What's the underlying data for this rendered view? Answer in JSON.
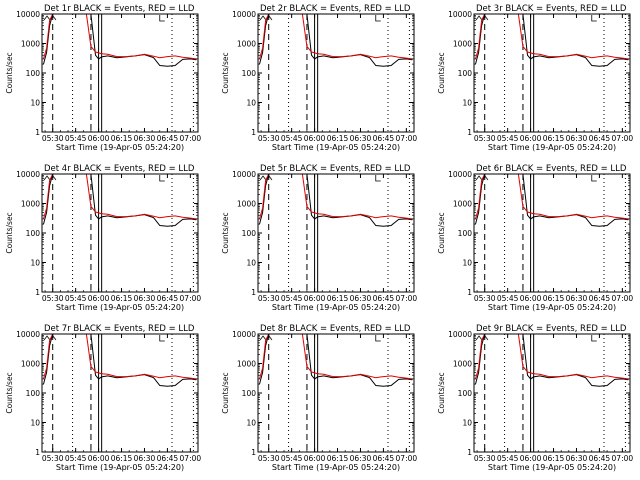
{
  "figure": {
    "common": {
      "xlabel": "Start Time (19-Apr-05 05:24:20)",
      "ylabel": "Counts/sec",
      "x_ticks": [
        "05:30",
        "05:45",
        "06:00",
        "06:15",
        "06:30",
        "06:45",
        "07:00"
      ],
      "y_ticks": [
        "1",
        "10",
        "100",
        "1000",
        "10000"
      ],
      "y_scale": "log",
      "colors": {
        "events": "#000000",
        "lld": "#e00000"
      }
    }
  },
  "chart_data": [
    {
      "type": "line",
      "title": "Det 1r BLACK = Events, RED = LLD",
      "x": [
        "05:24",
        "05:26",
        "05:28",
        "05:30",
        "05:33",
        "05:36",
        "05:40",
        "05:43",
        "05:46",
        "05:49",
        "05:52",
        "05:55",
        "05:58",
        "06:00",
        "06:02",
        "06:06",
        "06:12",
        "06:18",
        "06:24",
        "06:30",
        "06:36",
        "06:40",
        "06:45",
        "06:50",
        "06:55",
        "07:00",
        "07:04"
      ],
      "series": [
        {
          "name": "Events",
          "values": [
            200,
            500,
            4000,
            10000,
            10000,
            10000,
            10000,
            10000,
            10000,
            10000,
            10000,
            10000,
            400,
            300,
            350,
            380,
            330,
            350,
            380,
            420,
            330,
            180,
            170,
            180,
            290,
            300,
            280
          ]
        },
        {
          "name": "LLD",
          "values": [
            300,
            700,
            6000,
            10000,
            10000,
            10000,
            10000,
            10000,
            10000,
            10000,
            10000,
            800,
            520,
            480,
            450,
            430,
            360,
            360,
            380,
            430,
            370,
            330,
            360,
            380,
            340,
            320,
            300
          ]
        }
      ],
      "ylim": [
        1,
        10000
      ]
    },
    {
      "type": "line",
      "title": "Det 2r BLACK = Events, RED = LLD",
      "x": [
        "05:24",
        "05:26",
        "05:28",
        "05:30",
        "05:33",
        "05:36",
        "05:40",
        "05:43",
        "05:46",
        "05:49",
        "05:52",
        "05:55",
        "05:58",
        "06:00",
        "06:02",
        "06:06",
        "06:12",
        "06:18",
        "06:24",
        "06:30",
        "06:36",
        "06:40",
        "06:45",
        "06:50",
        "06:55",
        "07:00",
        "07:04"
      ],
      "series": [
        {
          "name": "Events",
          "values": [
            200,
            500,
            4000,
            10000,
            10000,
            10000,
            10000,
            10000,
            10000,
            10000,
            10000,
            10000,
            400,
            300,
            350,
            380,
            330,
            350,
            380,
            420,
            330,
            180,
            170,
            180,
            290,
            300,
            280
          ]
        },
        {
          "name": "LLD",
          "values": [
            300,
            700,
            6000,
            10000,
            10000,
            10000,
            10000,
            10000,
            10000,
            10000,
            10000,
            800,
            520,
            480,
            450,
            430,
            360,
            360,
            380,
            430,
            370,
            330,
            360,
            380,
            340,
            320,
            300
          ]
        }
      ],
      "ylim": [
        1,
        10000
      ]
    },
    {
      "type": "line",
      "title": "Det 3r BLACK = Events, RED = LLD",
      "x": [
        "05:24",
        "05:26",
        "05:28",
        "05:30",
        "05:33",
        "05:36",
        "05:40",
        "05:43",
        "05:46",
        "05:49",
        "05:52",
        "05:55",
        "05:58",
        "06:00",
        "06:02",
        "06:06",
        "06:12",
        "06:18",
        "06:24",
        "06:30",
        "06:36",
        "06:40",
        "06:45",
        "06:50",
        "06:55",
        "07:00",
        "07:04"
      ],
      "series": [
        {
          "name": "Events",
          "values": [
            200,
            500,
            4000,
            10000,
            10000,
            10000,
            10000,
            10000,
            10000,
            10000,
            10000,
            10000,
            400,
            300,
            350,
            380,
            330,
            350,
            380,
            420,
            330,
            180,
            170,
            180,
            290,
            300,
            280
          ]
        },
        {
          "name": "LLD",
          "values": [
            300,
            700,
            6000,
            10000,
            10000,
            10000,
            10000,
            10000,
            10000,
            10000,
            10000,
            800,
            520,
            480,
            450,
            430,
            360,
            360,
            380,
            430,
            370,
            330,
            360,
            380,
            340,
            320,
            300
          ]
        }
      ],
      "ylim": [
        1,
        10000
      ]
    },
    {
      "type": "line",
      "title": "Det 4r BLACK = Events, RED = LLD",
      "x": [
        "05:24",
        "05:26",
        "05:28",
        "05:30",
        "05:33",
        "05:36",
        "05:40",
        "05:43",
        "05:46",
        "05:49",
        "05:52",
        "05:55",
        "05:58",
        "06:00",
        "06:02",
        "06:06",
        "06:12",
        "06:18",
        "06:24",
        "06:30",
        "06:36",
        "06:40",
        "06:45",
        "06:50",
        "06:55",
        "07:00",
        "07:04"
      ],
      "series": [
        {
          "name": "Events",
          "values": [
            200,
            500,
            4000,
            10000,
            10000,
            10000,
            10000,
            10000,
            10000,
            10000,
            10000,
            10000,
            400,
            300,
            350,
            380,
            330,
            350,
            380,
            420,
            330,
            180,
            170,
            180,
            290,
            300,
            280
          ]
        },
        {
          "name": "LLD",
          "values": [
            300,
            700,
            6000,
            10000,
            10000,
            10000,
            10000,
            10000,
            10000,
            10000,
            10000,
            800,
            520,
            480,
            450,
            430,
            360,
            360,
            380,
            430,
            370,
            330,
            360,
            380,
            340,
            320,
            300
          ]
        }
      ],
      "ylim": [
        1,
        10000
      ]
    },
    {
      "type": "line",
      "title": "Det 5r BLACK = Events, RED = LLD",
      "x": [
        "05:24",
        "05:26",
        "05:28",
        "05:30",
        "05:33",
        "05:36",
        "05:40",
        "05:43",
        "05:46",
        "05:49",
        "05:52",
        "05:55",
        "05:58",
        "06:00",
        "06:02",
        "06:06",
        "06:12",
        "06:18",
        "06:24",
        "06:30",
        "06:36",
        "06:40",
        "06:45",
        "06:50",
        "06:55",
        "07:00",
        "07:04"
      ],
      "series": [
        {
          "name": "Events",
          "values": [
            200,
            500,
            4000,
            10000,
            10000,
            10000,
            10000,
            10000,
            10000,
            10000,
            10000,
            10000,
            400,
            300,
            350,
            380,
            330,
            350,
            380,
            420,
            330,
            180,
            170,
            180,
            290,
            300,
            280
          ]
        },
        {
          "name": "LLD",
          "values": [
            300,
            700,
            6000,
            10000,
            10000,
            10000,
            10000,
            10000,
            10000,
            10000,
            10000,
            800,
            520,
            480,
            450,
            430,
            360,
            360,
            380,
            430,
            370,
            330,
            360,
            380,
            340,
            320,
            300
          ]
        }
      ],
      "ylim": [
        1,
        10000
      ]
    },
    {
      "type": "line",
      "title": "Det 6r BLACK = Events, RED = LLD",
      "x": [
        "05:24",
        "05:26",
        "05:28",
        "05:30",
        "05:33",
        "05:36",
        "05:40",
        "05:43",
        "05:46",
        "05:49",
        "05:52",
        "05:55",
        "05:58",
        "06:00",
        "06:02",
        "06:06",
        "06:12",
        "06:18",
        "06:24",
        "06:30",
        "06:36",
        "06:40",
        "06:45",
        "06:50",
        "06:55",
        "07:00",
        "07:04"
      ],
      "series": [
        {
          "name": "Events",
          "values": [
            200,
            500,
            4000,
            10000,
            10000,
            10000,
            10000,
            10000,
            10000,
            10000,
            10000,
            10000,
            400,
            300,
            350,
            380,
            330,
            350,
            380,
            420,
            330,
            180,
            170,
            180,
            290,
            300,
            280
          ]
        },
        {
          "name": "LLD",
          "values": [
            300,
            700,
            6000,
            10000,
            10000,
            10000,
            10000,
            10000,
            10000,
            10000,
            10000,
            800,
            520,
            480,
            450,
            430,
            360,
            360,
            380,
            430,
            370,
            330,
            360,
            380,
            340,
            320,
            300
          ]
        }
      ],
      "ylim": [
        1,
        10000
      ]
    },
    {
      "type": "line",
      "title": "Det 7r BLACK = Events, RED = LLD",
      "x": [
        "05:24",
        "05:26",
        "05:28",
        "05:30",
        "05:33",
        "05:36",
        "05:40",
        "05:43",
        "05:46",
        "05:49",
        "05:52",
        "05:55",
        "05:58",
        "06:00",
        "06:02",
        "06:06",
        "06:12",
        "06:18",
        "06:24",
        "06:30",
        "06:36",
        "06:40",
        "06:45",
        "06:50",
        "06:55",
        "07:00",
        "07:04"
      ],
      "series": [
        {
          "name": "Events",
          "values": [
            200,
            500,
            4000,
            10000,
            10000,
            10000,
            10000,
            10000,
            10000,
            10000,
            10000,
            10000,
            400,
            300,
            350,
            380,
            330,
            350,
            380,
            420,
            330,
            180,
            170,
            180,
            290,
            300,
            280
          ]
        },
        {
          "name": "LLD",
          "values": [
            300,
            700,
            6000,
            10000,
            10000,
            10000,
            10000,
            10000,
            10000,
            10000,
            10000,
            800,
            520,
            480,
            450,
            430,
            360,
            360,
            380,
            430,
            370,
            330,
            360,
            380,
            340,
            320,
            300
          ]
        }
      ],
      "ylim": [
        1,
        10000
      ]
    },
    {
      "type": "line",
      "title": "Det 8r BLACK = Events, RED = LLD",
      "x": [
        "05:24",
        "05:26",
        "05:28",
        "05:30",
        "05:33",
        "05:36",
        "05:40",
        "05:43",
        "05:46",
        "05:49",
        "05:52",
        "05:55",
        "05:58",
        "06:00",
        "06:02",
        "06:06",
        "06:12",
        "06:18",
        "06:24",
        "06:30",
        "06:36",
        "06:40",
        "06:45",
        "06:50",
        "06:55",
        "07:00",
        "07:04"
      ],
      "series": [
        {
          "name": "Events",
          "values": [
            200,
            500,
            4000,
            10000,
            10000,
            10000,
            10000,
            10000,
            10000,
            10000,
            10000,
            10000,
            400,
            300,
            350,
            380,
            330,
            350,
            380,
            420,
            330,
            180,
            170,
            180,
            290,
            300,
            280
          ]
        },
        {
          "name": "LLD",
          "values": [
            300,
            700,
            6000,
            10000,
            10000,
            10000,
            10000,
            10000,
            10000,
            10000,
            10000,
            800,
            520,
            480,
            450,
            430,
            360,
            360,
            380,
            430,
            370,
            330,
            360,
            380,
            340,
            320,
            300
          ]
        }
      ],
      "ylim": [
        1,
        10000
      ]
    },
    {
      "type": "line",
      "title": "Det 9r BLACK = Events, RED = LLD",
      "x": [
        "05:24",
        "05:26",
        "05:28",
        "05:30",
        "05:33",
        "05:36",
        "05:40",
        "05:43",
        "05:46",
        "05:49",
        "05:52",
        "05:55",
        "05:58",
        "06:00",
        "06:02",
        "06:06",
        "06:12",
        "06:18",
        "06:24",
        "06:30",
        "06:36",
        "06:40",
        "06:45",
        "06:50",
        "06:55",
        "07:00",
        "07:04"
      ],
      "series": [
        {
          "name": "Events",
          "values": [
            200,
            500,
            4000,
            10000,
            10000,
            10000,
            10000,
            10000,
            10000,
            10000,
            10000,
            10000,
            400,
            300,
            350,
            380,
            330,
            350,
            380,
            420,
            330,
            180,
            170,
            180,
            290,
            300,
            280
          ]
        },
        {
          "name": "LLD",
          "values": [
            300,
            700,
            6000,
            10000,
            10000,
            10000,
            10000,
            10000,
            10000,
            10000,
            10000,
            800,
            520,
            480,
            450,
            430,
            360,
            360,
            380,
            430,
            370,
            330,
            360,
            380,
            340,
            320,
            300
          ]
        }
      ],
      "ylim": [
        1,
        10000
      ]
    }
  ]
}
